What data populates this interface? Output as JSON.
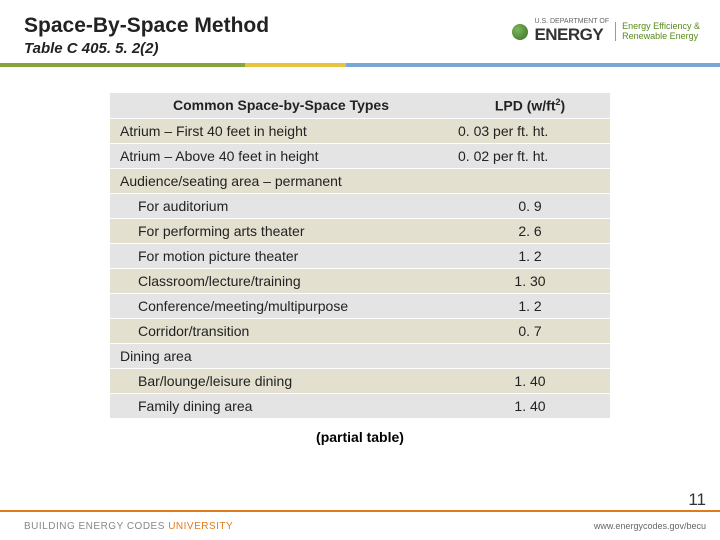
{
  "colors": {
    "accent_left": "#86a43c",
    "accent_mid": "#e4c440",
    "accent_right": "#7aa6d8",
    "footer_border": "#e07b1a"
  },
  "header": {
    "title": "Space-By-Space Method",
    "subtitle": "Table C 405. 5. 2(2)",
    "dept": "U.S. DEPARTMENT OF",
    "energy": "ENERGY",
    "eere_l1": "Energy Efficiency &",
    "eere_l2": "Renewable Energy"
  },
  "table": {
    "col1": "Common Space-by-Space Types",
    "col2_pre": "LPD (w/ft",
    "col2_post": ")",
    "rows": [
      {
        "label": "Atrium – First 40 feet in height",
        "val": "0. 03 per ft. ht.",
        "class": "row-tan",
        "indent": false
      },
      {
        "label": "Atrium – Above 40 feet in height",
        "val": "0. 02 per ft. ht.",
        "class": "row-grey",
        "indent": false
      },
      {
        "label": "Audience/seating area – permanent",
        "val": "",
        "class": "row-tan",
        "indent": false
      },
      {
        "label": "For auditorium",
        "val": "0. 9",
        "class": "row-grey",
        "indent": true
      },
      {
        "label": "For performing arts theater",
        "val": "2. 6",
        "class": "row-tan",
        "indent": true
      },
      {
        "label": "For motion picture theater",
        "val": "1. 2",
        "class": "row-grey",
        "indent": true
      },
      {
        "label": "Classroom/lecture/training",
        "val": "1. 30",
        "class": "row-tan",
        "indent": true
      },
      {
        "label": "Conference/meeting/multipurpose",
        "val": "1. 2",
        "class": "row-grey",
        "indent": true
      },
      {
        "label": "Corridor/transition",
        "val": "0. 7",
        "class": "row-tan",
        "indent": true
      },
      {
        "label": "Dining area",
        "val": "",
        "class": "row-grey",
        "indent": false
      },
      {
        "label": "Bar/lounge/leisure dining",
        "val": "1. 40",
        "class": "row-tan",
        "indent": true
      },
      {
        "label": "Family dining area",
        "val": "1. 40",
        "class": "row-grey",
        "indent": true
      }
    ],
    "partial": "(partial table)"
  },
  "footer": {
    "left_grey": "BUILDING ENERGY CODES ",
    "left_orange": "UNIVERSITY",
    "right": "www.energycodes.gov/becu",
    "page": "11"
  }
}
